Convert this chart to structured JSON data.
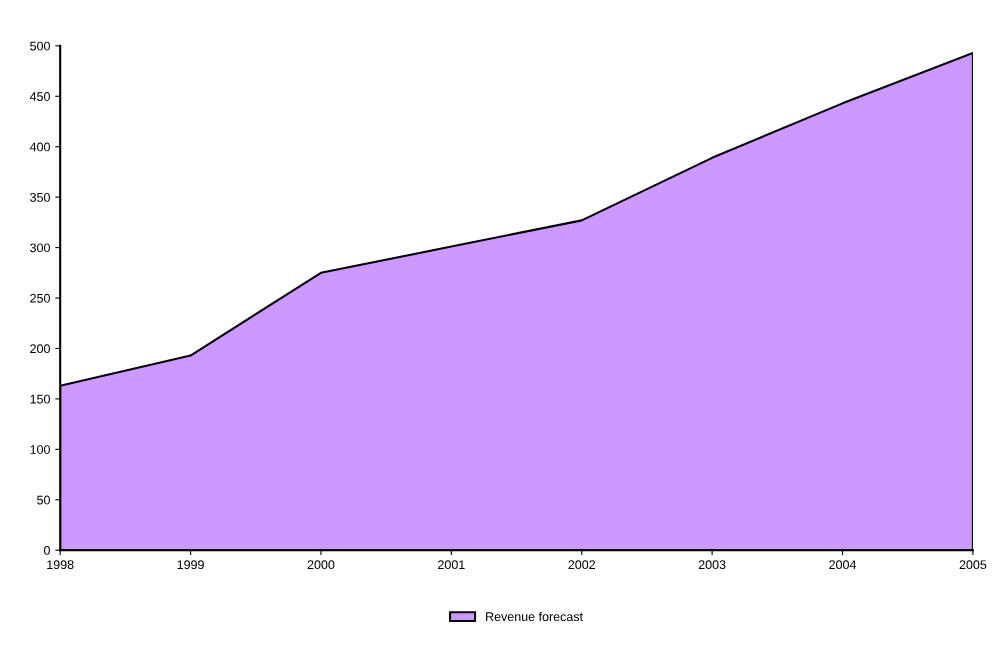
{
  "chart_data": {
    "type": "area",
    "categories": [
      "1998",
      "1999",
      "2000",
      "2001",
      "2002",
      "2003",
      "2004",
      "2005"
    ],
    "series": [
      {
        "name": "Revenue forecast",
        "color": "#cc99ff",
        "values": [
          163,
          193,
          275,
          301,
          327,
          389,
          443,
          493
        ]
      }
    ],
    "ylim": [
      0,
      500
    ],
    "yticks": [
      0,
      50,
      100,
      150,
      200,
      250,
      300,
      350,
      400,
      450,
      500
    ],
    "grid": false,
    "legend": "bottom"
  }
}
